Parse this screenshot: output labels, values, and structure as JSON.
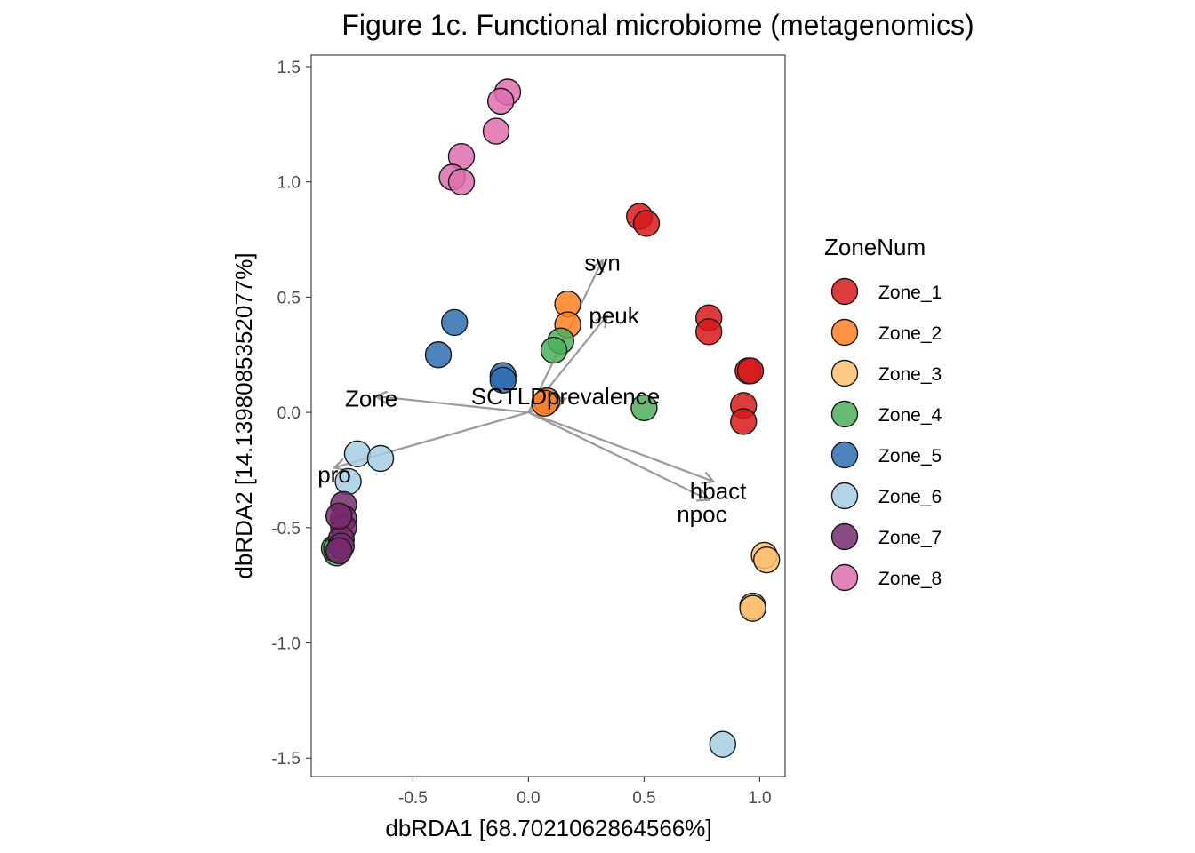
{
  "chart_data": {
    "type": "scatter",
    "title": "Figure 1c. Functional microbiome (metagenomics)",
    "xlabel": "dbRDA1 [68.7021062864566%]",
    "ylabel": "dbRDA2 [14.1398085352077%]",
    "xlim": [
      -0.94,
      1.11
    ],
    "ylim": [
      -1.58,
      1.55
    ],
    "xticks": [
      -0.5,
      0.0,
      0.5,
      1.0
    ],
    "xtick_labels": [
      "-0.5",
      "0.0",
      "0.5",
      "1.0"
    ],
    "yticks": [
      -1.5,
      -1.0,
      -0.5,
      0.0,
      0.5,
      1.0,
      1.5
    ],
    "ytick_labels": [
      "-1.5",
      "-1.0",
      "-0.5",
      "0.0",
      "0.5",
      "1.0",
      "1.5"
    ],
    "grid": false,
    "legend": {
      "title": "ZoneNum",
      "position": "right"
    },
    "series": [
      {
        "name": "Zone_1",
        "color": "#D7191C",
        "points": [
          [
            0.48,
            0.85
          ],
          [
            0.51,
            0.82
          ],
          [
            0.78,
            0.41
          ],
          [
            0.78,
            0.35
          ],
          [
            0.95,
            0.18
          ],
          [
            0.96,
            0.18
          ],
          [
            0.93,
            0.03
          ],
          [
            0.93,
            -0.04
          ]
        ]
      },
      {
        "name": "Zone_2",
        "color": "#FF7F22",
        "points": [
          [
            0.17,
            0.47
          ],
          [
            0.17,
            0.38
          ],
          [
            0.08,
            0.05
          ],
          [
            0.07,
            0.04
          ]
        ]
      },
      {
        "name": "Zone_3",
        "color": "#FDBF6F",
        "points": [
          [
            1.02,
            -0.62
          ],
          [
            1.03,
            -0.64
          ],
          [
            0.97,
            -0.84
          ],
          [
            0.97,
            -0.85
          ]
        ]
      },
      {
        "name": "Zone_4",
        "color": "#4DAF5A",
        "points": [
          [
            0.14,
            0.31
          ],
          [
            0.11,
            0.27
          ],
          [
            0.5,
            0.02
          ],
          [
            -0.83,
            -0.61
          ],
          [
            -0.84,
            -0.59
          ],
          [
            -0.83,
            -0.59
          ]
        ]
      },
      {
        "name": "Zone_5",
        "color": "#2F6DB0",
        "points": [
          [
            -0.32,
            0.39
          ],
          [
            -0.39,
            0.25
          ],
          [
            -0.11,
            0.16
          ],
          [
            -0.11,
            0.14
          ]
        ]
      },
      {
        "name": "Zone_6",
        "color": "#A6CEE3",
        "points": [
          [
            -0.74,
            -0.18
          ],
          [
            -0.64,
            -0.2
          ],
          [
            -0.78,
            -0.3
          ],
          [
            0.84,
            -1.44
          ]
        ]
      },
      {
        "name": "Zone_7",
        "color": "#762A6F",
        "points": [
          [
            -0.8,
            -0.4
          ],
          [
            -0.8,
            -0.46
          ],
          [
            -0.8,
            -0.5
          ],
          [
            -0.81,
            -0.55
          ],
          [
            -0.81,
            -0.58
          ],
          [
            -0.82,
            -0.6
          ],
          [
            -0.82,
            -0.45
          ]
        ]
      },
      {
        "name": "Zone_8",
        "color": "#DE6FAE",
        "points": [
          [
            -0.09,
            1.39
          ],
          [
            -0.12,
            1.35
          ],
          [
            -0.14,
            1.22
          ],
          [
            -0.29,
            1.11
          ],
          [
            -0.33,
            1.02
          ],
          [
            -0.29,
            1.0
          ]
        ]
      }
    ],
    "vectors": [
      {
        "label": "syn",
        "x": 0.32,
        "y": 0.66,
        "label_x": 0.32,
        "label_y": 0.65
      },
      {
        "label": "peuk",
        "x": 0.34,
        "y": 0.42,
        "label_x": 0.37,
        "label_y": 0.42
      },
      {
        "label": "SCTLDprevalence",
        "x": 0.16,
        "y": 0.06,
        "label_x": 0.16,
        "label_y": 0.07
      },
      {
        "label": "Zone",
        "x": -0.66,
        "y": 0.07,
        "label_x": -0.68,
        "label_y": 0.06
      },
      {
        "label": "pro",
        "x": -0.84,
        "y": -0.24,
        "label_x": -0.84,
        "label_y": -0.27
      },
      {
        "label": "hbact",
        "x": 0.8,
        "y": -0.3,
        "label_x": 0.82,
        "label_y": -0.34
      },
      {
        "label": "npoc",
        "x": 0.78,
        "y": -0.38,
        "label_x": 0.75,
        "label_y": -0.44
      }
    ]
  }
}
